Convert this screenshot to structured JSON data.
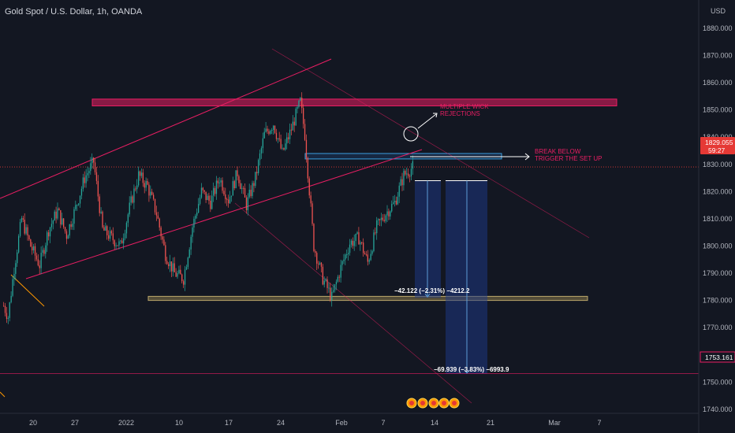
{
  "header": {
    "title": "Gold Spot / U.S. Dollar, 1h, OANDA"
  },
  "colors": {
    "background": "#131722",
    "up": "#26a69a",
    "down": "#ef5350",
    "channel": "#e91e63",
    "zone_top": "#e91e63",
    "zone_blue": "#2a78d6",
    "support": "#8a7a4a",
    "target_box": "#1e3a8a",
    "price_tag": "#e53935",
    "accent_orange": "#ff9800"
  },
  "chart_data": {
    "type": "candlestick",
    "symbol": "Gold Spot / U.S. Dollar",
    "interval": "1h",
    "source": "OANDA",
    "currency": "USD",
    "ylim": [
      1732,
      1886
    ],
    "y_ticks": [
      1740,
      1750,
      1760,
      1770,
      1780,
      1790,
      1800,
      1810,
      1820,
      1830,
      1840,
      1850,
      1860,
      1870,
      1880
    ],
    "y_tick_labels": [
      "1740.000",
      "1750.000",
      "1760.000",
      "1770.000",
      "1780.000",
      "1790.000",
      "1800.000",
      "1810.000",
      "1820.000",
      "1830.000",
      "1840.000",
      "1850.000",
      "1860.000",
      "1870.000",
      "1880.000"
    ],
    "x_tick_labels": [
      "20",
      "27",
      "2022",
      "10",
      "17",
      "24",
      "Feb",
      "7",
      "14",
      "21",
      "Mar",
      "7"
    ],
    "price_path": [
      [
        0,
        1778
      ],
      [
        3,
        1774
      ],
      [
        7,
        1792
      ],
      [
        12,
        1810
      ],
      [
        18,
        1800
      ],
      [
        24,
        1793
      ],
      [
        30,
        1806
      ],
      [
        36,
        1813
      ],
      [
        42,
        1804
      ],
      [
        48,
        1814
      ],
      [
        54,
        1825
      ],
      [
        60,
        1831
      ],
      [
        66,
        1806
      ],
      [
        72,
        1803
      ],
      [
        78,
        1800
      ],
      [
        84,
        1814
      ],
      [
        90,
        1826
      ],
      [
        96,
        1822
      ],
      [
        102,
        1812
      ],
      [
        108,
        1797
      ],
      [
        114,
        1790
      ],
      [
        120,
        1788
      ],
      [
        126,
        1807
      ],
      [
        132,
        1820
      ],
      [
        138,
        1816
      ],
      [
        144,
        1825
      ],
      [
        150,
        1817
      ],
      [
        156,
        1827
      ],
      [
        162,
        1815
      ],
      [
        168,
        1825
      ],
      [
        174,
        1841
      ],
      [
        180,
        1845
      ],
      [
        186,
        1834
      ],
      [
        192,
        1843
      ],
      [
        198,
        1853
      ],
      [
        201,
        1841
      ],
      [
        207,
        1800
      ],
      [
        213,
        1788
      ],
      [
        219,
        1781
      ],
      [
        225,
        1792
      ],
      [
        231,
        1801
      ],
      [
        237,
        1803
      ],
      [
        243,
        1794
      ],
      [
        249,
        1807
      ],
      [
        255,
        1812
      ],
      [
        261,
        1816
      ],
      [
        267,
        1826
      ],
      [
        273,
        1829
      ]
    ],
    "current_price": "1829.055",
    "countdown": "59:27",
    "target_price": "1753.161",
    "annotations": {
      "multiple_wick": [
        "MULTIPLE WICK",
        "REJECTIONS"
      ],
      "break_below": [
        "BREAK BELOW",
        "TRIGGER THE SET UP"
      ],
      "measure1": "−42.122 (−2.31%) −4212.2",
      "measure2": "−69.939 (−3.83%) −6993.9"
    },
    "grid": false,
    "legend": "none"
  }
}
